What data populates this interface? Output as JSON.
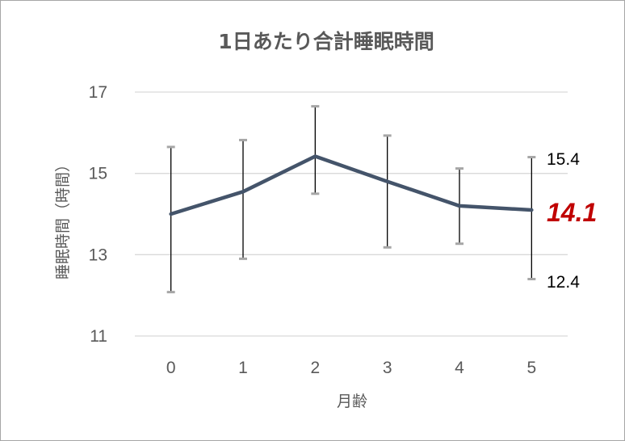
{
  "chart_data": {
    "type": "line",
    "title": "1日あたり合計睡眠時間",
    "xlabel": "月齢",
    "ylabel": "睡眠時間（時間）",
    "categories": [
      "0",
      "1",
      "2",
      "3",
      "4",
      "5"
    ],
    "ylim": [
      11,
      17
    ],
    "yticks": [
      "11",
      "13",
      "15",
      "17"
    ],
    "grid": "horizontal",
    "series": [
      {
        "values": [
          14.0,
          14.55,
          15.42,
          14.8,
          14.2,
          14.1
        ],
        "error_upper": [
          15.65,
          15.82,
          16.65,
          15.93,
          15.12,
          15.4
        ],
        "error_lower": [
          12.08,
          12.9,
          14.5,
          13.18,
          13.27,
          12.4
        ],
        "color": "#44546a"
      }
    ],
    "annotations": {
      "upper": "15.4",
      "mean": "14.1",
      "lower": "12.4"
    },
    "annotation_color": "#c00000"
  }
}
